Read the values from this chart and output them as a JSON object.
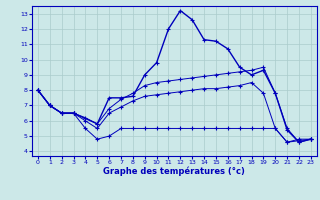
{
  "title": "Graphe des températures (°c)",
  "bg_color": "#cce8e8",
  "grid_color": "#aacccc",
  "line_color": "#0000bb",
  "xlim": [
    -0.5,
    23.5
  ],
  "ylim": [
    3.7,
    13.5
  ],
  "xtick_labels": [
    "0",
    "1",
    "2",
    "3",
    "4",
    "5",
    "6",
    "7",
    "8",
    "9",
    "10",
    "11",
    "12",
    "13",
    "14",
    "15",
    "16",
    "17",
    "18",
    "19",
    "20",
    "21",
    "22",
    "23"
  ],
  "xticks": [
    0,
    1,
    2,
    3,
    4,
    5,
    6,
    7,
    8,
    9,
    10,
    11,
    12,
    13,
    14,
    15,
    16,
    17,
    18,
    19,
    20,
    21,
    22,
    23
  ],
  "yticks": [
    4,
    5,
    6,
    7,
    8,
    9,
    10,
    11,
    12,
    13
  ],
  "line1_x": [
    0,
    1,
    2,
    3,
    5,
    6,
    7,
    8,
    9,
    10,
    11,
    12,
    13,
    14,
    15,
    16,
    17,
    18,
    19,
    20,
    21,
    22,
    23
  ],
  "line1_y": [
    8.0,
    7.0,
    6.5,
    6.5,
    5.8,
    7.5,
    7.5,
    7.6,
    9.0,
    9.8,
    12.0,
    13.2,
    12.6,
    11.3,
    11.2,
    10.7,
    9.5,
    9.0,
    9.3,
    7.8,
    5.4,
    4.6,
    4.8
  ],
  "line2_x": [
    0,
    1,
    2,
    3,
    4,
    5,
    6,
    7,
    8,
    9,
    10,
    11,
    12,
    13,
    14,
    15,
    16,
    17,
    18,
    19,
    20,
    21,
    22,
    23
  ],
  "line2_y": [
    8.0,
    7.0,
    6.5,
    6.5,
    6.2,
    5.8,
    6.8,
    7.4,
    7.8,
    8.3,
    8.5,
    8.6,
    8.7,
    8.8,
    8.9,
    9.0,
    9.1,
    9.2,
    9.3,
    9.5,
    7.8,
    5.5,
    4.6,
    4.8
  ],
  "line3_x": [
    0,
    1,
    2,
    3,
    4,
    5,
    6,
    7,
    8,
    9,
    10,
    11,
    12,
    13,
    14,
    15,
    16,
    17,
    18,
    19,
    20,
    21,
    22,
    23
  ],
  "line3_y": [
    8.0,
    7.0,
    6.5,
    6.5,
    6.0,
    5.5,
    6.5,
    6.9,
    7.3,
    7.6,
    7.7,
    7.8,
    7.9,
    8.0,
    8.1,
    8.1,
    8.2,
    8.3,
    8.5,
    7.8,
    5.5,
    4.6,
    4.8,
    4.8
  ],
  "line4_x": [
    0,
    1,
    2,
    3,
    4,
    5,
    6,
    7,
    8,
    9,
    10,
    11,
    12,
    13,
    14,
    15,
    16,
    17,
    18,
    19,
    20,
    21,
    22,
    23
  ],
  "line4_y": [
    8.0,
    7.0,
    6.5,
    6.5,
    5.5,
    4.8,
    5.0,
    5.5,
    5.5,
    5.5,
    5.5,
    5.5,
    5.5,
    5.5,
    5.5,
    5.5,
    5.5,
    5.5,
    5.5,
    5.5,
    5.5,
    4.6,
    4.7,
    4.8
  ]
}
